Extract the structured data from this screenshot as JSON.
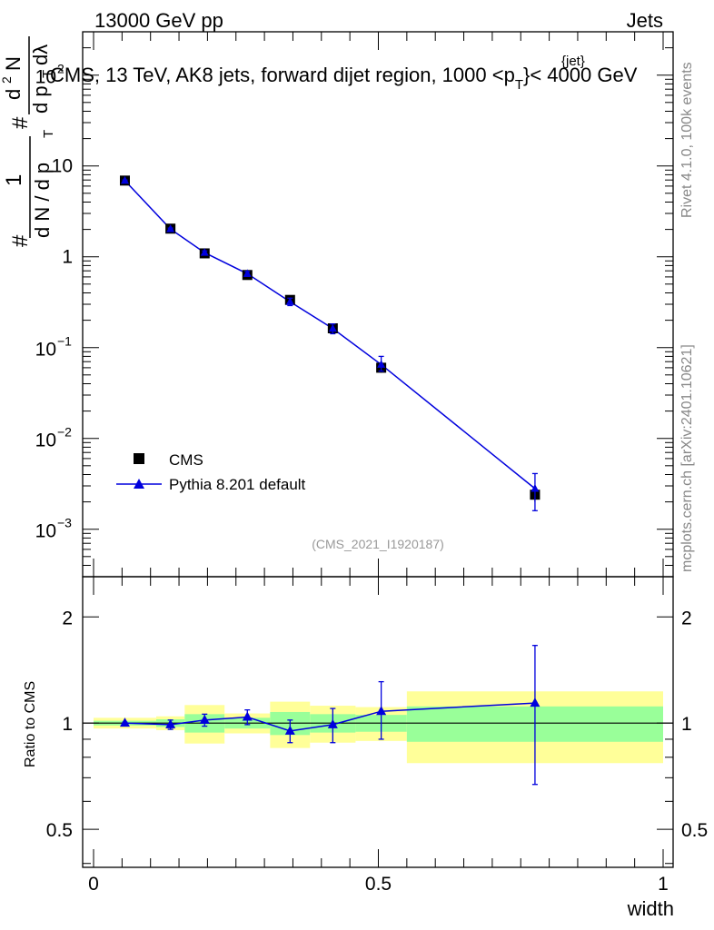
{
  "header": {
    "energy": "13000 GeV pp",
    "process": "Jets",
    "plot_title": "CMS, 13 TeV, AK8 jets, forward dijet region, 1000 <p",
    "title_sub": "T",
    "title_sup": "{jet}",
    "title_end": "}< 4000 GeV"
  },
  "y_axis_main": {
    "label_parts": [
      "1",
      "d N / d p",
      "T",
      "#",
      "d",
      "d p",
      "T",
      "2",
      "N",
      "dλ",
      "#",
      "#"
    ],
    "exp_ticks": [
      {
        "base": "10",
        "exp": "2",
        "value": 100,
        "clipped": true
      },
      {
        "base": "10",
        "exp": "",
        "value": 10
      },
      {
        "base": "1",
        "exp": "",
        "value": 1
      },
      {
        "base": "10",
        "exp": "−1",
        "value": 0.1
      },
      {
        "base": "10",
        "exp": "−2",
        "value": 0.01
      },
      {
        "base": "10",
        "exp": "−3",
        "value": 0.001
      }
    ]
  },
  "y_axis_ratio": {
    "label": "Ratio to CMS",
    "ticks": [
      {
        "label": "2",
        "value": 2
      },
      {
        "label": "1",
        "value": 1
      },
      {
        "label": "0.5",
        "value": 0.5
      }
    ]
  },
  "x_axis": {
    "label": "width",
    "ticks": [
      {
        "label": "0",
        "value": 0
      },
      {
        "label": "0.5",
        "value": 0.5
      },
      {
        "label": "1",
        "value": 1
      }
    ]
  },
  "legend": {
    "data_label": "CMS",
    "mc_label": "Pythia 8.201 default"
  },
  "watermark": "(CMS_2021_I1920187)",
  "side_text": {
    "rivet": "Rivet 4.1.0,  100k events",
    "mcplots": "mcplots.cern.ch [arXiv:2401.10621]"
  },
  "colors": {
    "mc": "#0000dd",
    "band_inner": "#99ff99",
    "band_outer": "#ffff99",
    "data": "#000000"
  },
  "chart_data": {
    "type": "scatter",
    "title": "CMS, 13 TeV, AK8 jets, forward dijet region, 1000 < pT(jet) < 4000 GeV",
    "xlabel": "width",
    "xlim": [
      0,
      1
    ],
    "main": {
      "yscale": "log",
      "ylim": [
        0.0003,
        300
      ],
      "bins": [
        [
          0.0,
          0.11
        ],
        [
          0.11,
          0.16
        ],
        [
          0.16,
          0.23
        ],
        [
          0.23,
          0.31
        ],
        [
          0.31,
          0.38
        ],
        [
          0.38,
          0.46
        ],
        [
          0.46,
          0.55
        ],
        [
          0.55,
          1.0
        ]
      ],
      "series": [
        {
          "name": "CMS",
          "x": [
            0.055,
            0.135,
            0.195,
            0.27,
            0.345,
            0.42,
            0.505,
            0.775
          ],
          "y": [
            6.9,
            2.04,
            1.09,
            0.63,
            0.335,
            0.163,
            0.06,
            0.0024
          ],
          "yerr": [
            0.25,
            0.08,
            0.05,
            0.03,
            0.03,
            0.015,
            0.007,
            0.0004
          ]
        },
        {
          "name": "Pythia 8.201 default",
          "x": [
            0.055,
            0.135,
            0.195,
            0.27,
            0.345,
            0.42,
            0.505,
            0.775
          ],
          "y": [
            6.9,
            2.02,
            1.11,
            0.65,
            0.32,
            0.162,
            0.065,
            0.0028
          ],
          "yerr_low": [
            0.1,
            0.05,
            0.05,
            0.04,
            0.03,
            0.02,
            0.01,
            0.0012
          ],
          "yerr_high": [
            0.1,
            0.05,
            0.05,
            0.04,
            0.03,
            0.02,
            0.015,
            0.0013
          ]
        }
      ]
    },
    "ratio": {
      "ylabel": "Ratio to CMS",
      "yscale": "log",
      "ylim": [
        0.39,
        2.6
      ],
      "reference": 1,
      "bands": [
        {
          "x0": 0.0,
          "x1": 0.11,
          "inner_lo": 0.985,
          "inner_hi": 1.015,
          "outer_lo": 0.965,
          "outer_hi": 1.035
        },
        {
          "x0": 0.11,
          "x1": 0.16,
          "inner_lo": 0.975,
          "inner_hi": 1.025,
          "outer_lo": 0.955,
          "outer_hi": 1.045
        },
        {
          "x0": 0.16,
          "x1": 0.23,
          "inner_lo": 0.94,
          "inner_hi": 1.06,
          "outer_lo": 0.875,
          "outer_hi": 1.125
        },
        {
          "x0": 0.23,
          "x1": 0.31,
          "inner_lo": 0.965,
          "inner_hi": 1.035,
          "outer_lo": 0.935,
          "outer_hi": 1.065
        },
        {
          "x0": 0.31,
          "x1": 0.38,
          "inner_lo": 0.925,
          "inner_hi": 1.075,
          "outer_lo": 0.85,
          "outer_hi": 1.15
        },
        {
          "x0": 0.38,
          "x1": 0.46,
          "inner_lo": 0.94,
          "inner_hi": 1.06,
          "outer_lo": 0.88,
          "outer_hi": 1.12
        },
        {
          "x0": 0.46,
          "x1": 0.55,
          "inner_lo": 0.945,
          "inner_hi": 1.055,
          "outer_lo": 0.89,
          "outer_hi": 1.11
        },
        {
          "x0": 0.55,
          "x1": 1.0,
          "inner_lo": 0.885,
          "inner_hi": 1.115,
          "outer_lo": 0.77,
          "outer_hi": 1.23
        }
      ],
      "series": [
        {
          "name": "Pythia 8.201 default",
          "x": [
            0.055,
            0.135,
            0.195,
            0.27,
            0.345,
            0.42,
            0.505,
            0.775
          ],
          "y": [
            1.0,
            0.99,
            1.02,
            1.04,
            0.95,
            0.99,
            1.08,
            1.14
          ],
          "yerr_low": [
            0.005,
            0.03,
            0.04,
            0.05,
            0.07,
            0.11,
            0.18,
            0.47
          ],
          "yerr_high": [
            0.005,
            0.03,
            0.04,
            0.05,
            0.07,
            0.11,
            0.23,
            0.52
          ]
        }
      ]
    }
  }
}
